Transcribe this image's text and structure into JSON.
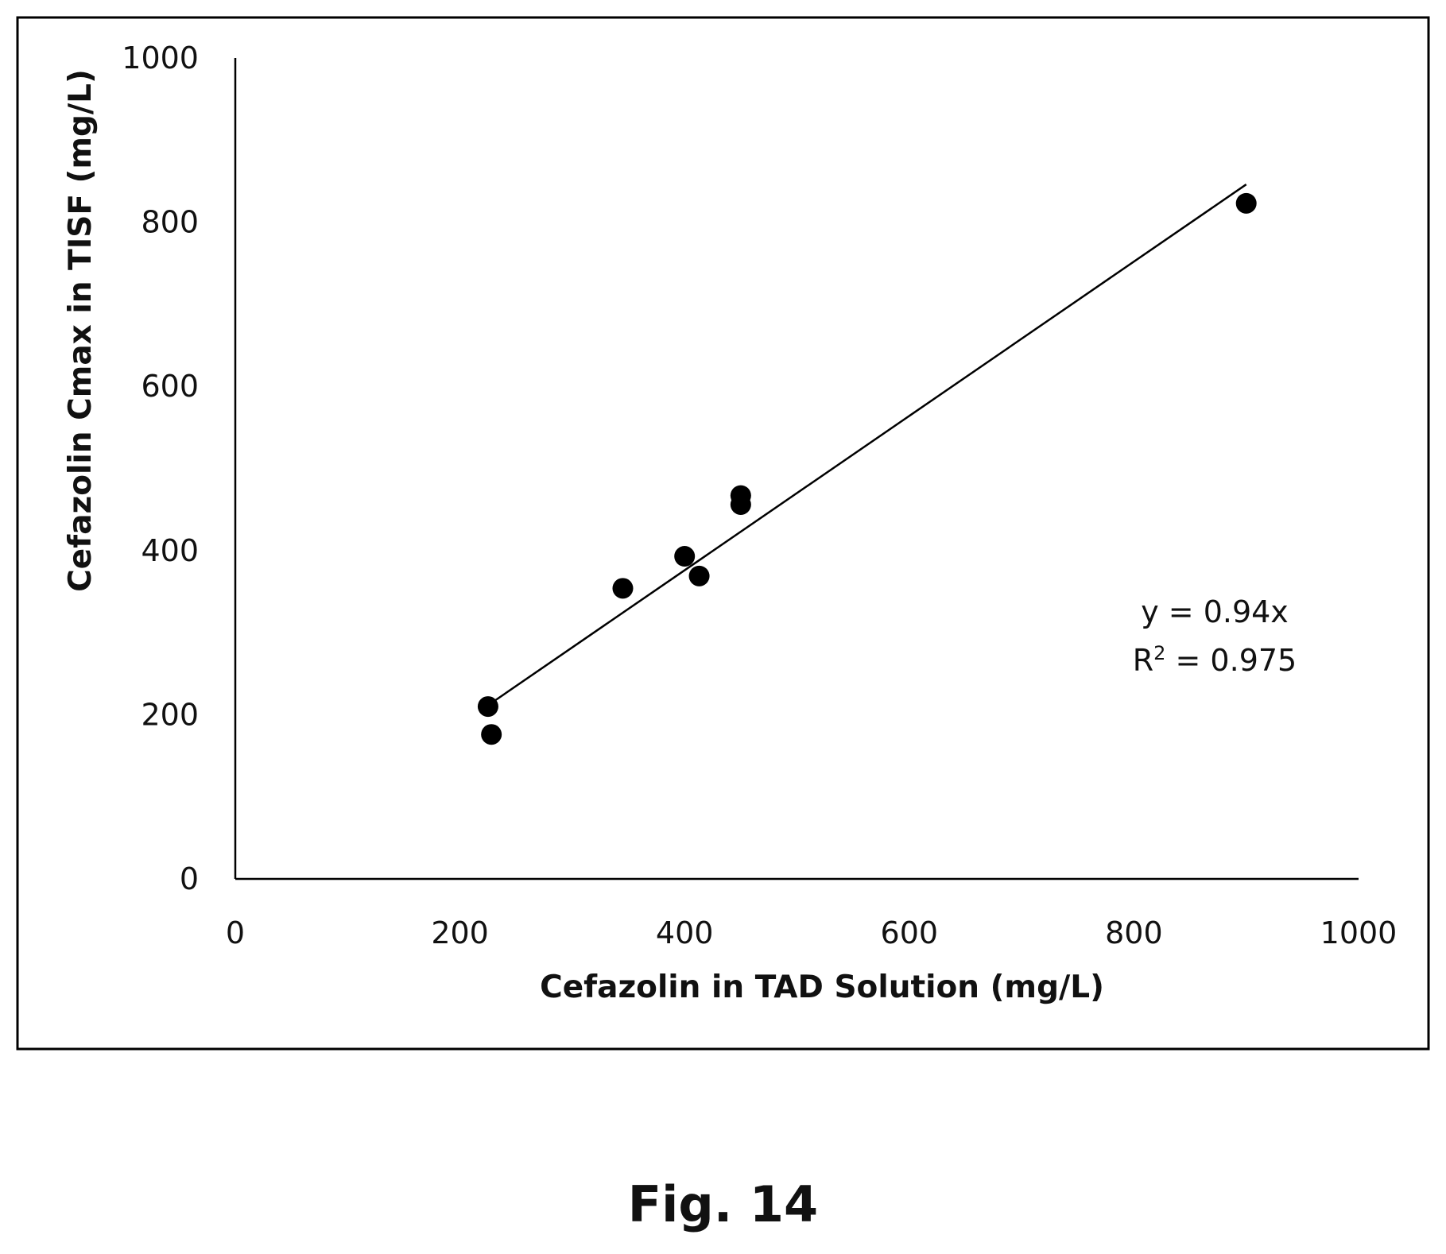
{
  "figure": {
    "caption": "Fig. 14"
  },
  "chart_data": {
    "type": "scatter",
    "title": "",
    "xlabel": "Cefazolin in TAD Solution (mg/L)",
    "ylabel": "Cefazolin Cmax in TISF (mg/L)",
    "xlim": [
      0,
      1000
    ],
    "ylim": [
      0,
      1000
    ],
    "x_ticks": [
      0,
      200,
      400,
      600,
      800,
      1000
    ],
    "y_ticks": [
      0,
      200,
      400,
      600,
      800,
      1000
    ],
    "grid": false,
    "legend": "none",
    "marker_color": "#000000",
    "line_color": "#000000",
    "points": [
      {
        "x": 225,
        "y": 210
      },
      {
        "x": 228,
        "y": 176
      },
      {
        "x": 345,
        "y": 354
      },
      {
        "x": 400,
        "y": 393
      },
      {
        "x": 413,
        "y": 369
      },
      {
        "x": 450,
        "y": 467
      },
      {
        "x": 450,
        "y": 456
      },
      {
        "x": 900,
        "y": 823
      }
    ],
    "trendline": {
      "slope": 0.94,
      "intercept": 0,
      "x_range": [
        225,
        900
      ]
    },
    "annotation": {
      "equation": "y = 0.94x",
      "r2_prefix": "R",
      "r2_superscript": "2",
      "r2_suffix": " = 0.975"
    }
  }
}
